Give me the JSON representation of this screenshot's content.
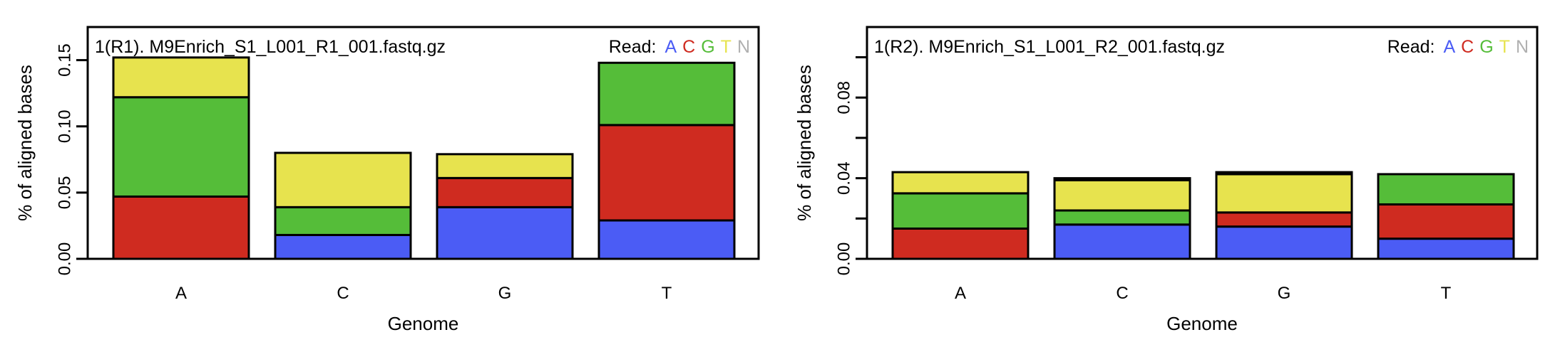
{
  "colors": {
    "A": "#4b5cf5",
    "C": "#cf2b20",
    "G": "#55bd39",
    "T": "#e7e34e",
    "N": "#b0b0b0"
  },
  "chart_data": [
    {
      "type": "bar",
      "stacked": true,
      "title": "1(R1). M9Enrich_S1_L001_R1_001.fastq.gz",
      "legend": {
        "label": "Read:",
        "entries": [
          "A",
          "C",
          "G",
          "T",
          "N"
        ],
        "placement": "top-right"
      },
      "xlabel": "Genome",
      "ylabel": "% of aligned bases",
      "categories": [
        "A",
        "C",
        "G",
        "T"
      ],
      "ylim": [
        0,
        0.175
      ],
      "yticks": [
        0,
        0.05,
        0.1,
        0.15
      ],
      "ytick_labels": [
        "0.00",
        "0.05",
        "0.10",
        "0.15"
      ],
      "series": [
        {
          "name": "A",
          "values": [
            0.0,
            0.018,
            0.039,
            0.029
          ]
        },
        {
          "name": "C",
          "values": [
            0.047,
            0.0,
            0.022,
            0.072
          ]
        },
        {
          "name": "G",
          "values": [
            0.075,
            0.021,
            0.0,
            0.047
          ]
        },
        {
          "name": "T",
          "values": [
            0.03,
            0.041,
            0.018,
            0.0
          ]
        },
        {
          "name": "N",
          "values": [
            0.0,
            0.0,
            0.0,
            0.0
          ]
        }
      ]
    },
    {
      "type": "bar",
      "stacked": true,
      "title": "1(R2). M9Enrich_S1_L001_R2_001.fastq.gz",
      "legend": {
        "label": "Read:",
        "entries": [
          "A",
          "C",
          "G",
          "T",
          "N"
        ],
        "placement": "top-right"
      },
      "xlabel": "Genome",
      "ylabel": "% of aligned bases",
      "categories": [
        "A",
        "C",
        "G",
        "T"
      ],
      "ylim": [
        0,
        0.115
      ],
      "yticks": [
        0,
        0.02,
        0.04,
        0.06,
        0.08,
        0.1
      ],
      "ytick_labels": [
        "0.00",
        "",
        "0.04",
        "",
        "0.08",
        ""
      ],
      "series": [
        {
          "name": "A",
          "values": [
            0.0,
            0.017,
            0.016,
            0.01
          ]
        },
        {
          "name": "C",
          "values": [
            0.015,
            0.0,
            0.007,
            0.017
          ]
        },
        {
          "name": "G",
          "values": [
            0.0175,
            0.007,
            0.0,
            0.015
          ]
        },
        {
          "name": "T",
          "values": [
            0.0105,
            0.015,
            0.019,
            0.0
          ]
        },
        {
          "name": "N",
          "values": [
            0.0,
            0.001,
            0.001,
            0.0
          ]
        }
      ]
    }
  ]
}
